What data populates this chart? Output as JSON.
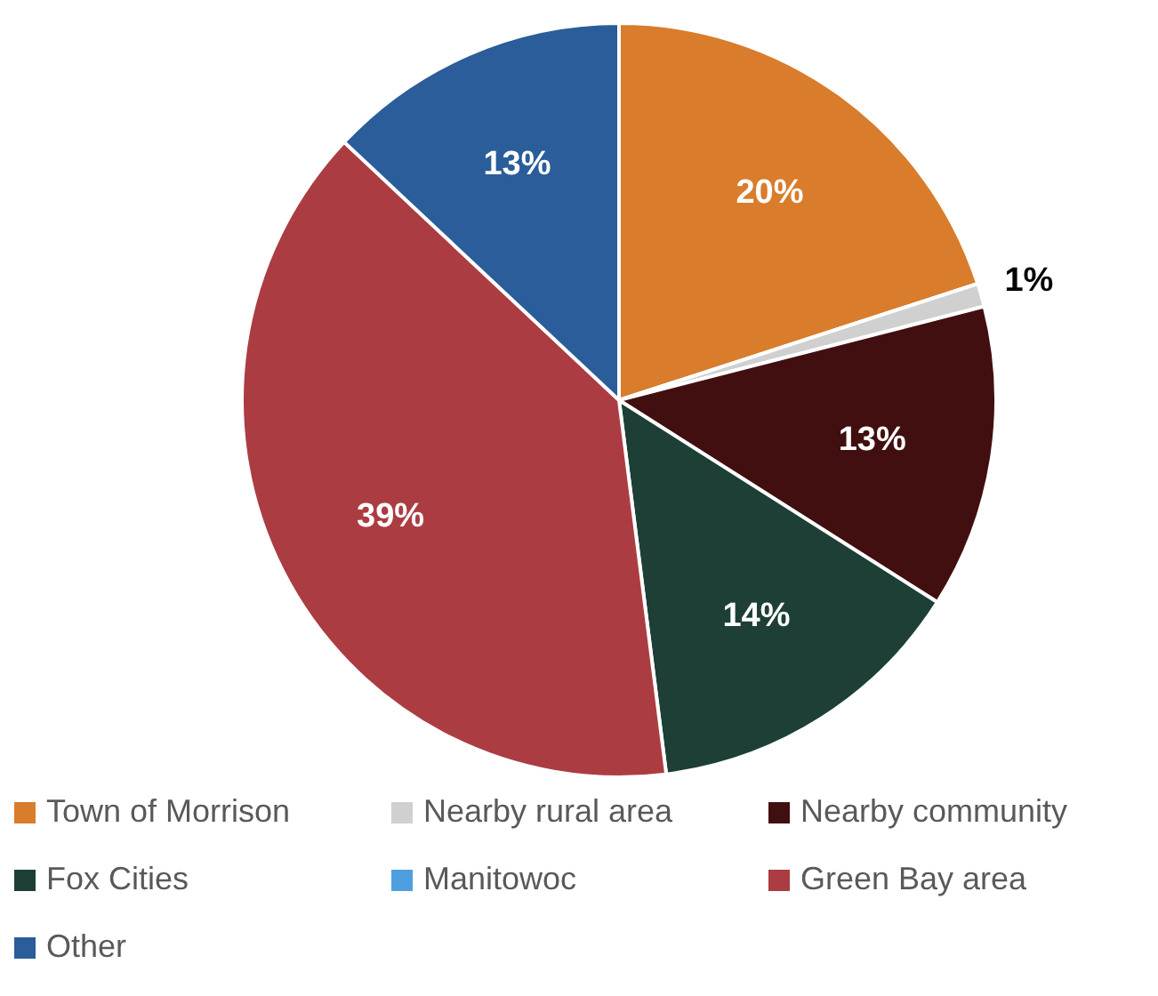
{
  "chart_data": {
    "type": "pie",
    "categories": [
      "Town of Morrison",
      "Nearby rural area",
      "Nearby community",
      "Fox Cities",
      "Manitowoc",
      "Green Bay area",
      "Other"
    ],
    "values": [
      20,
      1,
      13,
      14,
      0,
      39,
      13
    ],
    "colors": [
      "#d97c2b",
      "#d0d0d0",
      "#420f10",
      "#1d3f36",
      "#4f9fe0",
      "#ab3d42",
      "#2a5d99"
    ],
    "value_labels": [
      "20%",
      "1%",
      "13%",
      "14%",
      null,
      "39%",
      "13%"
    ],
    "legend": "bottom"
  }
}
